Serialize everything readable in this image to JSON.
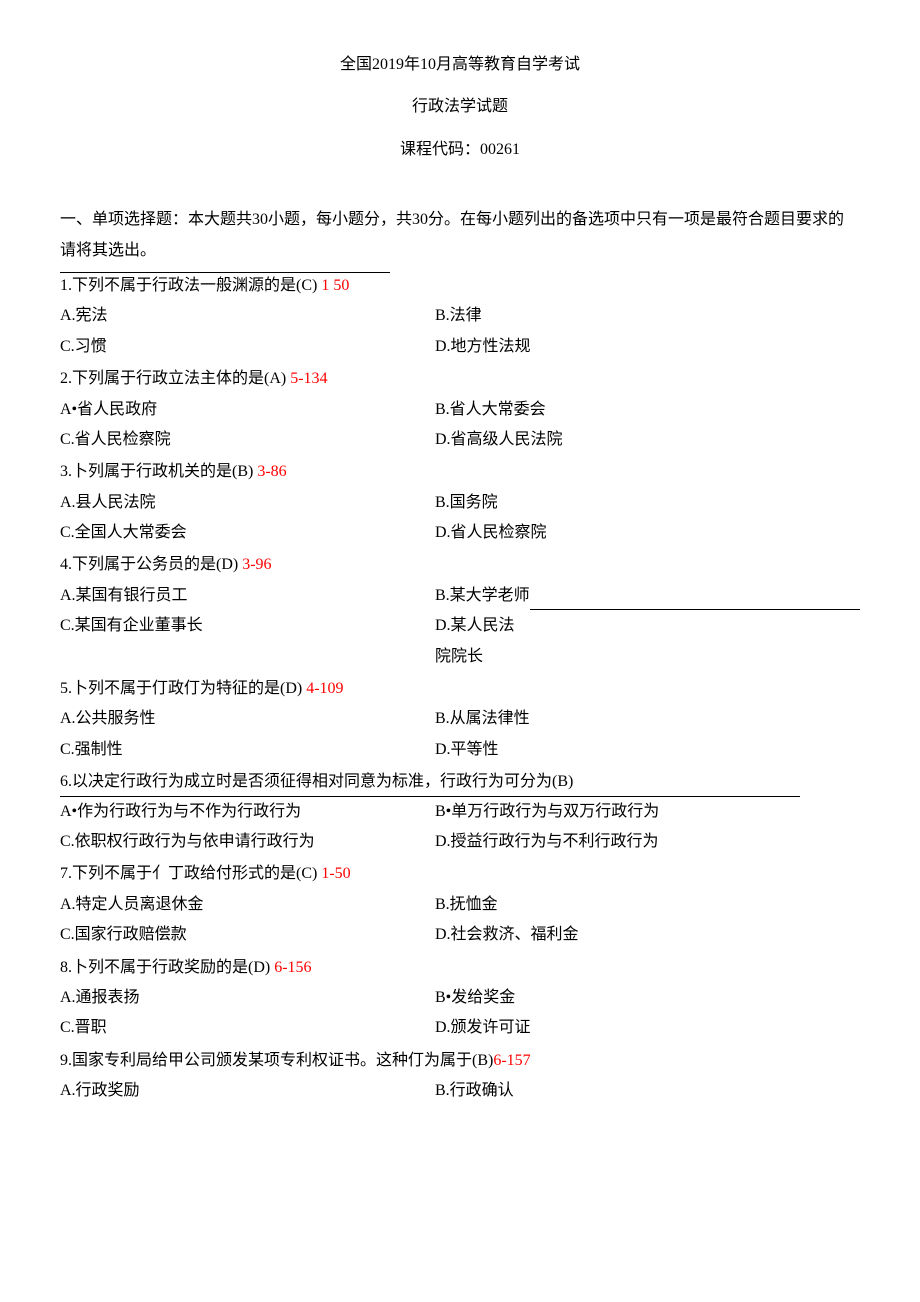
{
  "header": {
    "line1": "全国2019年10月高等教育自学考试",
    "line2": "行政法学试题",
    "line3": "课程代码：00261"
  },
  "section": {
    "intro1": "一、单项选择题：本大题共30小题，每小题分，共30分。在每小题列出的备选项中只有一项是最符合题目要求的",
    "intro2": "请将其选出。"
  },
  "questions": [
    {
      "stem": "1.下列不属于行政法一般渊源的是(C) ",
      "ref": "1 50",
      "opts": [
        [
          "A.宪法",
          "B.法律"
        ],
        [
          "C.习惯",
          "D.地方性法规"
        ]
      ]
    },
    {
      "stem": "2.下列属于行政立法主体的是(A) ",
      "ref": "5-134",
      "opts": [
        [
          "A•省人民政府",
          "B.省人大常委会"
        ],
        [
          "C.省人民检察院",
          "D.省高级人民法院"
        ]
      ]
    },
    {
      "stem": "3.卜列属于行政机关的是(B) ",
      "ref": "3-86",
      "opts": [
        [
          "A.县人民法院",
          "B.国务院"
        ],
        [
          "C.全国人大常委会",
          "D.省人民检察院"
        ]
      ]
    },
    {
      "stem": "4.下列属于公务员的是(D) ",
      "ref": "3-96",
      "opts": [
        [
          "A.某国有银行员工",
          "B.某大学老师"
        ],
        [
          "C.某国有企业董事长",
          "D.某人民法院院长"
        ]
      ]
    },
    {
      "stem": "5.卜列不属于仃政仃为特征的是(D) ",
      "ref": "4-109",
      "opts": [
        [
          "A.公共服务性",
          "B.从属法律性"
        ],
        [
          "C.强制性",
          "D.平等性"
        ]
      ]
    },
    {
      "stem": "6.以决定行政行为成立时是否须征得相对同意为标准，行政行为可分为(B)",
      "ref": "",
      "opts": [
        [
          "A•作为行政行为与不作为行政行为",
          "B•单万行政行为与双万行政行为"
        ],
        [
          "C.依职权行政行为与依申请行政行为",
          "D.授益行政行为与不利行政行为"
        ]
      ]
    },
    {
      "stem": "7.下列不属于亻丁政给付形式的是(C) ",
      "ref": "1-50",
      "opts": [
        [
          "A.特定人员离退休金",
          "B.抚恤金"
        ],
        [
          "C.国家行政赔偿款",
          "D.社会救济、福利金"
        ]
      ]
    },
    {
      "stem": "8.卜列不属于行政奖励的是(D) ",
      "ref": "6-156",
      "opts": [
        [
          "A.通报表扬",
          "B•发给奖金"
        ],
        [
          "C.晋职",
          "D.颁发许可证"
        ]
      ]
    },
    {
      "stem": "9.国家专利局给甲公司颁发某项专利权证书。这种仃为属于(B)",
      "ref": "6-157",
      "opts": [
        [
          "A.行政奖励",
          "B.行政确认"
        ]
      ]
    }
  ]
}
